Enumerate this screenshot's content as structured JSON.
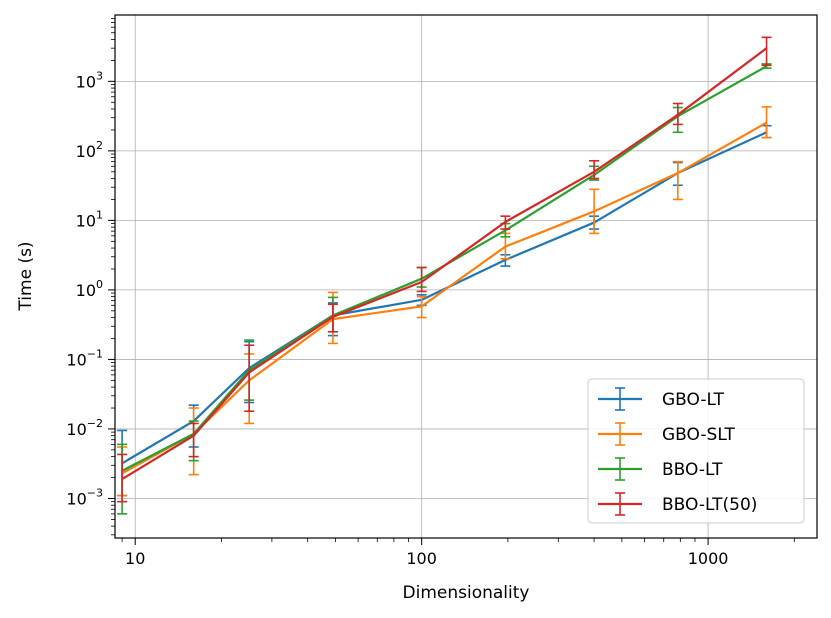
{
  "chart_data": {
    "type": "line",
    "title": "",
    "xlabel": "Dimensionality",
    "ylabel": "Time (s)",
    "xscale": "log",
    "yscale": "log",
    "xlim": [
      8.5,
      2400
    ],
    "ylim": [
      0.00027,
      9000
    ],
    "grid": true,
    "legend_position": "bottom-right",
    "x_ticks": [
      {
        "value": 10,
        "label": "10"
      },
      {
        "value": 100,
        "label": "100"
      },
      {
        "value": 1000,
        "label": "1000"
      }
    ],
    "y_ticks": [
      {
        "value": 0.001,
        "base": "10",
        "exp": "−3"
      },
      {
        "value": 0.01,
        "base": "10",
        "exp": "−2"
      },
      {
        "value": 0.1,
        "base": "10",
        "exp": "−1"
      },
      {
        "value": 1,
        "base": "10",
        "exp": "0"
      },
      {
        "value": 10,
        "base": "10",
        "exp": "1"
      },
      {
        "value": 100,
        "base": "10",
        "exp": "2"
      },
      {
        "value": 1000,
        "base": "10",
        "exp": "3"
      }
    ],
    "x": [
      9,
      16,
      25,
      49,
      100,
      196,
      400,
      784,
      1600
    ],
    "series": [
      {
        "name": "GBO-LT",
        "color": "#1f77b4",
        "values": [
          0.0032,
          0.013,
          0.075,
          0.43,
          0.72,
          2.7,
          9.3,
          48,
          185
        ],
        "lower": [
          0.0011,
          0.0055,
          0.024,
          0.22,
          0.6,
          2.2,
          7.5,
          32,
          155
        ],
        "upper": [
          0.0095,
          0.022,
          0.18,
          0.65,
          0.85,
          3.2,
          11.5,
          68,
          230
        ]
      },
      {
        "name": "GBO-SLT",
        "color": "#ff7f0e",
        "values": [
          0.0023,
          0.0085,
          0.05,
          0.38,
          0.58,
          4.2,
          13.5,
          48,
          255
        ],
        "lower": [
          0.0011,
          0.0022,
          0.012,
          0.17,
          0.4,
          2.8,
          6.5,
          20,
          155
        ],
        "upper": [
          0.0055,
          0.02,
          0.12,
          0.92,
          0.8,
          6.5,
          28,
          70,
          430
        ]
      },
      {
        "name": "BBO-LT",
        "color": "#2ca02c",
        "values": [
          0.0025,
          0.0085,
          0.07,
          0.43,
          1.45,
          7.2,
          45,
          315,
          1650
        ],
        "lower": [
          0.0006,
          0.0035,
          0.026,
          0.25,
          1.1,
          5.8,
          38,
          185,
          1550
        ],
        "upper": [
          0.006,
          0.013,
          0.19,
          0.78,
          2.1,
          9.0,
          60,
          420,
          1780
        ]
      },
      {
        "name": "BBO-LT(50)",
        "color": "#d62728",
        "values": [
          0.0019,
          0.008,
          0.065,
          0.41,
          1.3,
          9.5,
          50,
          330,
          3000
        ],
        "lower": [
          0.0009,
          0.004,
          0.018,
          0.25,
          0.95,
          7.5,
          40,
          240,
          1700
        ],
        "upper": [
          0.0043,
          0.012,
          0.16,
          0.62,
          2.1,
          11.5,
          72,
          480,
          4300
        ]
      }
    ]
  }
}
